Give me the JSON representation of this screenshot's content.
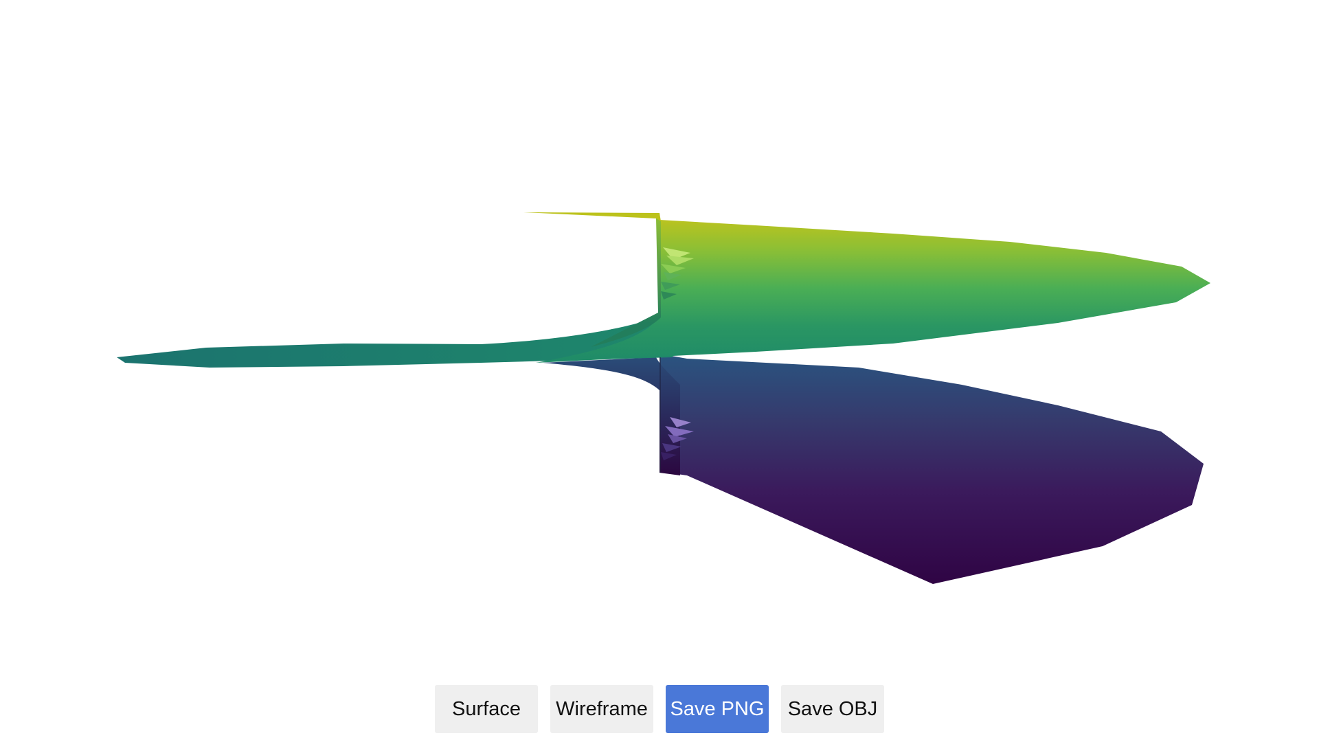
{
  "viewer": {
    "render_mode": "Surface",
    "colormap": "viridis",
    "colors": {
      "yellow": "#c0c41c",
      "green": "#2a9a62",
      "teal": "#1d7f70",
      "blue": "#2f4e80",
      "purple": "#3b175e",
      "dark_purple": "#300545"
    }
  },
  "toolbar": {
    "surface_label": "Surface",
    "wireframe_label": "Wireframe",
    "save_png_label": "Save PNG",
    "save_obj_label": "Save OBJ",
    "active_accent": "#4a78d8"
  }
}
